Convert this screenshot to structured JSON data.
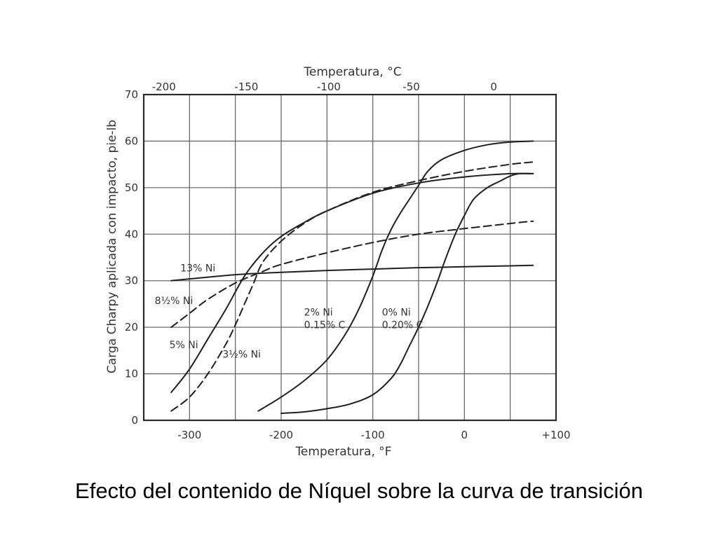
{
  "caption": "Efecto del contenido de Níquel sobre la curva de transición",
  "chart_data": {
    "type": "line",
    "title": "",
    "xlabel": "Temperatura, °F",
    "x2label": "Temperatura, °C",
    "ylabel": "Carga Charpy aplicada con impacto, pie-lb",
    "xlim": [
      -350,
      100
    ],
    "ylim": [
      0,
      70
    ],
    "x_ticks": [
      -300,
      -200,
      -100,
      0,
      100
    ],
    "x_tick_labels": [
      "-300",
      "-200",
      "-100",
      "0",
      "+100"
    ],
    "x2_ticks_celsius": [
      -200,
      -150,
      -100,
      -50,
      0
    ],
    "x2_tick_labels": [
      "-200",
      "-150",
      "-100",
      "-50",
      "0"
    ],
    "y_ticks": [
      0,
      10,
      20,
      30,
      40,
      50,
      60,
      70
    ],
    "y_tick_labels": [
      "0",
      "10",
      "20",
      "30",
      "40",
      "50",
      "60",
      "70"
    ],
    "grid": true,
    "series": [
      {
        "name": "13% Ni",
        "label_lines": [
          "13% Ni"
        ],
        "label_at": [
          -310,
          32
        ],
        "dash": false,
        "x": [
          -320,
          -250,
          -200,
          -150,
          -100,
          -50,
          0,
          50,
          75
        ],
        "y": [
          30,
          31.3,
          31.8,
          32.2,
          32.5,
          32.8,
          33,
          33.2,
          33.3
        ]
      },
      {
        "name": "8 1/2% Ni",
        "label_lines": [
          "8½% Ni"
        ],
        "label_at": [
          -338,
          25
        ],
        "dash": true,
        "x": [
          -320,
          -300,
          -280,
          -250,
          -220,
          -200,
          -150,
          -100,
          -50,
          0,
          50,
          75
        ],
        "y": [
          20,
          23,
          26,
          29.5,
          32,
          33.5,
          36,
          38.2,
          40,
          41.2,
          42.3,
          42.8
        ]
      },
      {
        "name": "5% Ni",
        "label_lines": [
          "5% Ni"
        ],
        "label_at": [
          -322,
          15.5
        ],
        "dash": false,
        "x": [
          -320,
          -300,
          -280,
          -260,
          -240,
          -220,
          -200,
          -175,
          -150,
          -100,
          -50,
          0,
          50,
          75
        ],
        "y": [
          6,
          11,
          17.5,
          24,
          31,
          36,
          39.5,
          42.5,
          45,
          48.8,
          51,
          52.3,
          53,
          53
        ]
      },
      {
        "name": "3 1/2% Ni",
        "label_lines": [
          "3½% Ni"
        ],
        "label_at": [
          -264,
          13.5
        ],
        "dash": true,
        "x": [
          -320,
          -300,
          -280,
          -260,
          -250,
          -240,
          -230,
          -220,
          -200,
          -175,
          -150,
          -100,
          -50,
          0,
          50,
          75
        ],
        "y": [
          2,
          5,
          10,
          16.5,
          20.5,
          25,
          29.5,
          34,
          38.5,
          42.3,
          45,
          49,
          51.5,
          53.5,
          55,
          55.5
        ]
      },
      {
        "name": "2% Ni 0.15% C",
        "label_lines": [
          "2% Ni",
          "0.15% C"
        ],
        "label_at": [
          -175,
          22.5
        ],
        "dash": false,
        "x": [
          -225,
          -200,
          -175,
          -150,
          -130,
          -115,
          -100,
          -90,
          -80,
          -70,
          -60,
          -50,
          -40,
          -25,
          0,
          25,
          50,
          75
        ],
        "y": [
          2,
          5,
          8.5,
          13,
          18.5,
          24,
          31,
          36.5,
          41,
          44.5,
          47.5,
          50.5,
          53.5,
          56,
          58,
          59.2,
          59.8,
          60
        ]
      },
      {
        "name": "0% Ni 0.20% C",
        "label_lines": [
          "0% Ni",
          "0.20% C"
        ],
        "label_at": [
          -90,
          22.5
        ],
        "dash": false,
        "x": [
          -200,
          -175,
          -150,
          -125,
          -100,
          -80,
          -70,
          -60,
          -50,
          -40,
          -30,
          -20,
          -10,
          0,
          10,
          25,
          40,
          50,
          60,
          75
        ],
        "y": [
          1.5,
          1.8,
          2.5,
          3.5,
          5.5,
          9,
          12,
          16,
          20,
          24.5,
          29.5,
          35,
          40,
          44,
          47.5,
          50,
          51.5,
          52.5,
          53,
          53
        ]
      }
    ]
  }
}
